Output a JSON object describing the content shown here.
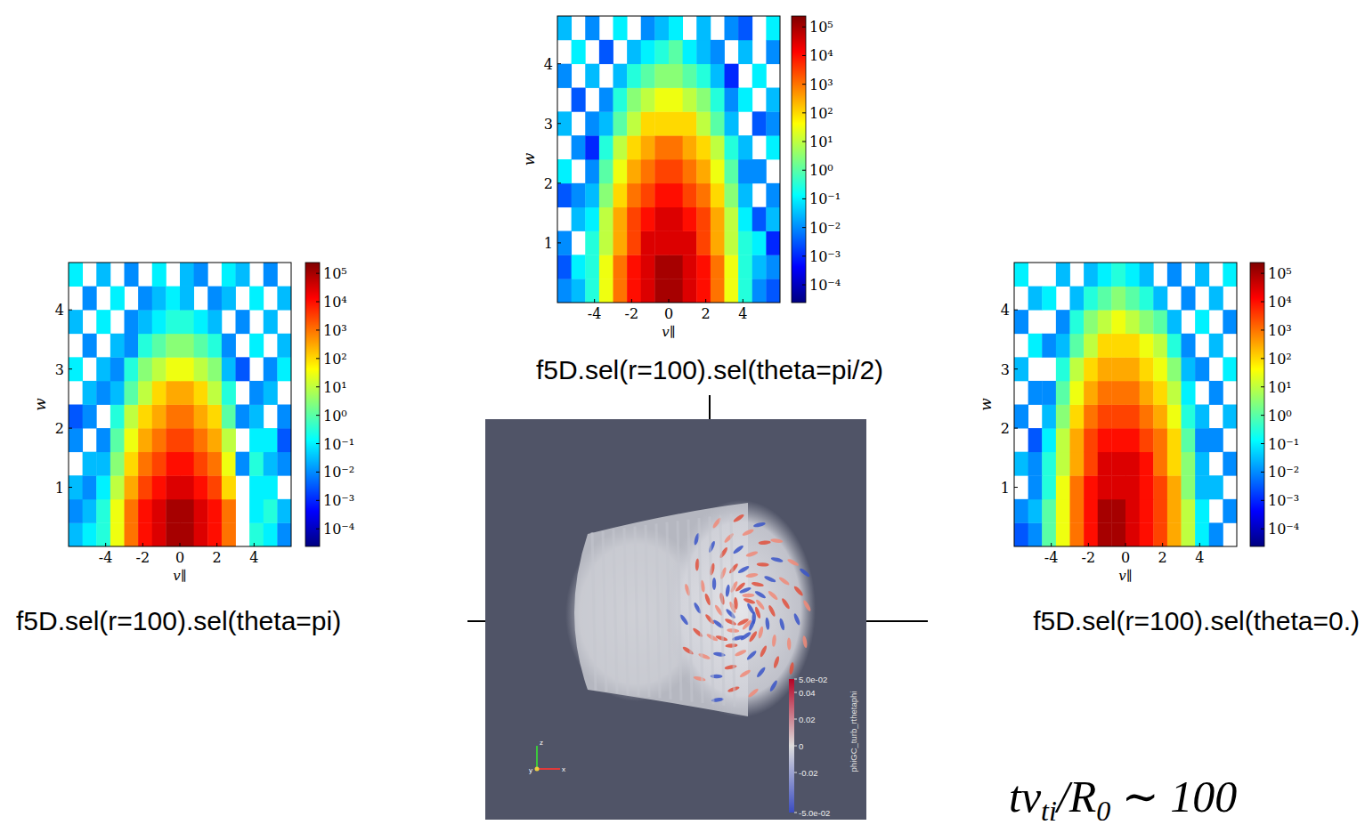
{
  "chart_data": [
    {
      "type": "heatmap",
      "title": "f5D.sel(r=100).sel(theta=pi)",
      "x_label": "v∥",
      "y_label": "w",
      "xlim": [
        -6,
        6
      ],
      "ylim": [
        0,
        4.8
      ],
      "xticks": [
        -4,
        -2,
        0,
        2,
        4
      ],
      "yticks": [
        1,
        2,
        3,
        4
      ],
      "log": true,
      "x_bins": [
        -6,
        -5.25,
        -4.5,
        -3.75,
        -3,
        -2.25,
        -1.5,
        -0.75,
        0,
        0.75,
        1.5,
        2.25,
        3,
        3.75,
        4.5,
        5.25,
        6
      ],
      "y_bins": [
        0,
        0.4,
        0.8,
        1.2,
        1.6,
        2,
        2.4,
        2.8,
        3.2,
        3.6,
        4,
        4.4,
        4.8
      ],
      "cells": [
        [
          0.03,
          0.1,
          0.3,
          30.0,
          1000.0,
          10000.0,
          30000.0,
          100000.0,
          100000.0,
          30000.0,
          10000.0,
          1000.0,
          null,
          0.3,
          0.1,
          0.01
        ],
        [
          0.01,
          0.03,
          0.3,
          30.0,
          1000.0,
          10000.0,
          30000.0,
          100000.0,
          100000.0,
          30000.0,
          10000.0,
          1000.0,
          null,
          0.1,
          0.3,
          0.03
        ],
        [
          0.03,
          0.01,
          0.1,
          10.0,
          300.0,
          3000.0,
          10000.0,
          30000.0,
          30000.0,
          10000.0,
          3000.0,
          100.0,
          null,
          0.1,
          0.1,
          null
        ],
        [
          null,
          0.03,
          0.03,
          3.0,
          100.0,
          1000.0,
          3000.0,
          10000.0,
          10000.0,
          3000.0,
          1000.0,
          30.0,
          0.01,
          0.3,
          0.03,
          0.01
        ],
        [
          0.01,
          null,
          0.01,
          1.0,
          30.0,
          300.0,
          1000.0,
          3000.0,
          3000.0,
          1000.0,
          300.0,
          10.0,
          null,
          0.1,
          0.1,
          0.003
        ],
        [
          0.003,
          0.01,
          null,
          0.3,
          10.0,
          100.0,
          300.0,
          1000.0,
          1000.0,
          300.0,
          100.0,
          1.0,
          0.01,
          0.03,
          null,
          0.01
        ],
        [
          null,
          0.03,
          0.01,
          0.03,
          1.0,
          10.0,
          100.0,
          300.0,
          300.0,
          100.0,
          10.0,
          0.3,
          null,
          0.01,
          0.03,
          null
        ],
        [
          0.1,
          null,
          0.03,
          0.01,
          0.3,
          3.0,
          10.0,
          30.0,
          30.0,
          10.0,
          3.0,
          0.03,
          0.003,
          null,
          0.01,
          0.1
        ],
        [
          null,
          0.01,
          null,
          0.03,
          0.01,
          0.3,
          1.0,
          3.0,
          3.0,
          1.0,
          0.3,
          0.01,
          null,
          0.1,
          null,
          0.03
        ],
        [
          0.03,
          null,
          0.1,
          null,
          0.01,
          0.03,
          0.1,
          0.3,
          0.3,
          0.1,
          0.03,
          null,
          0.01,
          null,
          0.03,
          null
        ],
        [
          null,
          0.01,
          null,
          0.1,
          null,
          0.01,
          0.03,
          0.1,
          0.03,
          null,
          0.01,
          0.03,
          null,
          0.1,
          null,
          0.03
        ],
        [
          0.1,
          null,
          0.03,
          null,
          0.01,
          null,
          0.1,
          null,
          0.03,
          0.01,
          null,
          0.1,
          0.03,
          null,
          0.01,
          null
        ]
      ],
      "colorbar": {
        "range": [
          2.4e-05,
          240000.0
        ],
        "ticks": [
          {
            "value": 0.0001,
            "label": "10⁻⁴"
          },
          {
            "value": 0.001,
            "label": "10⁻³"
          },
          {
            "value": 0.01,
            "label": "10⁻²"
          },
          {
            "value": 0.1,
            "label": "10⁻¹"
          },
          {
            "value": 1,
            "label": "10⁰"
          },
          {
            "value": 10,
            "label": "10¹"
          },
          {
            "value": 100,
            "label": "10²"
          },
          {
            "value": 1000,
            "label": "10³"
          },
          {
            "value": 10000,
            "label": "10⁴"
          },
          {
            "value": 100000,
            "label": "10⁵"
          }
        ]
      }
    },
    {
      "type": "heatmap",
      "title": "f5D.sel(r=100).sel(theta=pi/2)",
      "x_label": "v∥",
      "y_label": "w",
      "xlim": [
        -6,
        6
      ],
      "ylim": [
        0,
        4.8
      ],
      "xticks": [
        -4,
        -2,
        0,
        2,
        4
      ],
      "yticks": [
        1,
        2,
        3,
        4
      ],
      "log": true,
      "x_bins": [
        -6,
        -5.25,
        -4.5,
        -3.75,
        -3,
        -2.25,
        -1.5,
        -0.75,
        0,
        0.75,
        1.5,
        2.25,
        3,
        3.75,
        4.5,
        5.25,
        6
      ],
      "y_bins": [
        0,
        0.4,
        0.8,
        1.2,
        1.6,
        2,
        2.4,
        2.8,
        3.2,
        3.6,
        4,
        4.4,
        4.8
      ],
      "cells": [
        [
          0.01,
          0.03,
          0.3,
          30.0,
          1000.0,
          10000.0,
          30000.0,
          100000.0,
          100000.0,
          30000.0,
          10000.0,
          1000.0,
          30.0,
          0.3,
          0.01,
          0.003
        ],
        [
          0.003,
          0.1,
          0.3,
          30.0,
          1000.0,
          10000.0,
          30000.0,
          100000.0,
          100000.0,
          30000.0,
          10000.0,
          1000.0,
          30.0,
          0.3,
          0.03,
          0.01
        ],
        [
          0.01,
          null,
          0.3,
          10.0,
          300.0,
          3000.0,
          30000.0,
          30000.0,
          30000.0,
          30000.0,
          3000.0,
          300.0,
          10.0,
          0.3,
          0.1,
          0.001
        ],
        [
          null,
          0.03,
          0.1,
          10.0,
          300.0,
          3000.0,
          10000.0,
          30000.0,
          30000.0,
          10000.0,
          3000.0,
          300.0,
          10.0,
          0.1,
          0.003,
          0.03
        ],
        [
          0.003,
          0.01,
          0.03,
          3.0,
          100.0,
          1000.0,
          3000.0,
          10000.0,
          10000.0,
          3000.0,
          1000.0,
          100.0,
          3.0,
          0.03,
          null,
          0.01
        ],
        [
          0.1,
          null,
          0.01,
          1.0,
          30.0,
          300.0,
          1000.0,
          3000.0,
          3000.0,
          1000.0,
          300.0,
          30.0,
          1.0,
          0.01,
          0.01,
          null
        ],
        [
          null,
          0.01,
          0.001,
          0.3,
          10.0,
          100.0,
          300.0,
          1000.0,
          1000.0,
          300.0,
          100.0,
          10.0,
          0.3,
          0.03,
          null,
          0.1
        ],
        [
          0.03,
          null,
          0.01,
          0.03,
          1.0,
          10.0,
          100.0,
          100.0,
          100.0,
          100.0,
          10.0,
          1.0,
          0.03,
          null,
          0.003,
          0.01
        ],
        [
          null,
          0.003,
          null,
          0.01,
          0.3,
          3.0,
          10.0,
          30.0,
          30.0,
          10.0,
          3.0,
          0.3,
          0.01,
          0.1,
          null,
          0.03
        ],
        [
          0.01,
          null,
          0.03,
          null,
          0.03,
          0.3,
          1.0,
          3.0,
          3.0,
          1.0,
          0.3,
          0.03,
          0.001,
          null,
          0.1,
          null
        ],
        [
          null,
          0.1,
          null,
          0.003,
          null,
          0.03,
          0.1,
          0.3,
          1.0,
          0.1,
          0.03,
          0.01,
          null,
          0.03,
          null,
          0.01
        ],
        [
          0.03,
          null,
          0.01,
          null,
          0.1,
          null,
          0.01,
          0.03,
          0.1,
          null,
          0.03,
          null,
          0.01,
          0.003,
          null,
          0.1
        ]
      ],
      "colorbar": {
        "range": [
          2.4e-05,
          240000.0
        ],
        "ticks": [
          {
            "value": 0.0001,
            "label": "10⁻⁴"
          },
          {
            "value": 0.001,
            "label": "10⁻³"
          },
          {
            "value": 0.01,
            "label": "10⁻²"
          },
          {
            "value": 0.1,
            "label": "10⁻¹"
          },
          {
            "value": 1,
            "label": "10⁰"
          },
          {
            "value": 10,
            "label": "10¹"
          },
          {
            "value": 100,
            "label": "10²"
          },
          {
            "value": 1000,
            "label": "10³"
          },
          {
            "value": 10000,
            "label": "10⁴"
          },
          {
            "value": 100000,
            "label": "10⁵"
          }
        ]
      }
    },
    {
      "type": "heatmap",
      "title": "f5D.sel(r=100).sel(theta=0.)",
      "x_label": "v∥",
      "y_label": "w",
      "xlim": [
        -6,
        6
      ],
      "ylim": [
        0,
        4.8
      ],
      "xticks": [
        -4,
        -2,
        0,
        2,
        4
      ],
      "yticks": [
        1,
        2,
        3,
        4
      ],
      "log": true,
      "x_bins": [
        -6,
        -5.25,
        -4.5,
        -3.75,
        -3,
        -2.25,
        -1.5,
        -0.75,
        0,
        0.75,
        1.5,
        2.25,
        3,
        3.75,
        4.5,
        5.25,
        6
      ],
      "y_bins": [
        0,
        0.4,
        0.8,
        1.2,
        1.6,
        2,
        2.4,
        2.8,
        3.2,
        3.6,
        4,
        4.4,
        4.8
      ],
      "cells": [
        [
          0.003,
          0.01,
          1.0,
          30.0,
          1000.0,
          10000.0,
          100000.0,
          100000.0,
          30000.0,
          10000.0,
          3000.0,
          300.0,
          10.0,
          0.1,
          0.01,
          null
        ],
        [
          0.01,
          0.03,
          1.0,
          30.0,
          1000.0,
          10000.0,
          100000.0,
          100000.0,
          30000.0,
          10000.0,
          3000.0,
          300.0,
          10.0,
          0.1,
          null,
          0.01
        ],
        [
          null,
          0.01,
          0.3,
          30.0,
          1000.0,
          10000.0,
          30000.0,
          30000.0,
          30000.0,
          10000.0,
          3000.0,
          300.0,
          3.0,
          0.03,
          0.03,
          null
        ],
        [
          0.03,
          0.01,
          0.3,
          10.0,
          300.0,
          3000.0,
          30000.0,
          30000.0,
          30000.0,
          10000.0,
          1000.0,
          100.0,
          3.0,
          0.03,
          null,
          0.01
        ],
        [
          null,
          0.003,
          0.1,
          10.0,
          300.0,
          3000.0,
          10000.0,
          10000.0,
          10000.0,
          3000.0,
          1000.0,
          100.0,
          1.0,
          0.01,
          0.01,
          null
        ],
        [
          0.01,
          null,
          0.03,
          3.0,
          100.0,
          1000.0,
          3000.0,
          3000.0,
          3000.0,
          1000.0,
          300.0,
          30.0,
          0.3,
          0.03,
          null,
          0.03
        ],
        [
          null,
          0.01,
          0.01,
          1.0,
          30.0,
          300.0,
          1000.0,
          1000.0,
          1000.0,
          300.0,
          100.0,
          10.0,
          0.1,
          null,
          0.01,
          null
        ],
        [
          0.03,
          null,
          null,
          0.3,
          10.0,
          100.0,
          300.0,
          300.0,
          300.0,
          100.0,
          30.0,
          3.0,
          0.03,
          0.01,
          null,
          0.1
        ],
        [
          null,
          0.1,
          0.01,
          0.03,
          1.0,
          10.0,
          100.0,
          100.0,
          100.0,
          30.0,
          10.0,
          0.3,
          0.01,
          null,
          0.03,
          null
        ],
        [
          0.01,
          null,
          null,
          0.01,
          0.3,
          3.0,
          10.0,
          30.0,
          10.0,
          3.0,
          1.0,
          0.03,
          null,
          0.1,
          null,
          0.01
        ],
        [
          null,
          0.03,
          0.1,
          null,
          0.03,
          0.3,
          1.0,
          3.0,
          1.0,
          0.3,
          0.03,
          null,
          0.01,
          null,
          0.03,
          null
        ],
        [
          0.1,
          null,
          null,
          0.03,
          null,
          0.03,
          0.1,
          0.3,
          0.1,
          0.03,
          null,
          0.01,
          null,
          0.03,
          null,
          0.1
        ]
      ],
      "colorbar": {
        "range": [
          2.4e-05,
          240000.0
        ],
        "ticks": [
          {
            "value": 0.0001,
            "label": "10⁻⁴"
          },
          {
            "value": 0.001,
            "label": "10⁻³"
          },
          {
            "value": 0.01,
            "label": "10⁻²"
          },
          {
            "value": 0.1,
            "label": "10⁻¹"
          },
          {
            "value": 1,
            "label": "10⁰"
          },
          {
            "value": 10,
            "label": "10¹"
          },
          {
            "value": 100,
            "label": "10²"
          },
          {
            "value": 1000,
            "label": "10³"
          },
          {
            "value": 10000,
            "label": "10⁴"
          },
          {
            "value": 100000,
            "label": "10⁵"
          }
        ]
      }
    }
  ],
  "render": {
    "colorbar": {
      "range": [
        -0.05,
        0.05
      ],
      "label": "phiGC_turb_rthetaphi",
      "ticks": [
        {
          "value": 0.05,
          "label": "5.0e-02"
        },
        0.04,
        0.02,
        0,
        -0.02,
        {
          "value": -0.05,
          "label": "-5.0e-02"
        }
      ]
    },
    "triad": [
      "z",
      "y",
      "x"
    ]
  },
  "formula": [
    {
      "text": "tv"
    },
    {
      "text": "ti",
      "sub": true
    },
    {
      "text": "/R"
    },
    {
      "text": "0",
      "sub": true
    },
    {
      "text": " ∼ 100"
    }
  ]
}
